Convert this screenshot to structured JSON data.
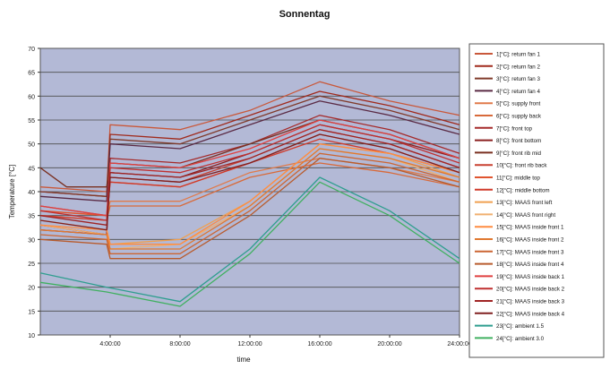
{
  "chart_data": {
    "type": "line",
    "title": "Sonnentag",
    "xlabel": "time",
    "ylabel": "Temperature [°C]",
    "ylim": [
      10,
      70
    ],
    "yticks": [
      10,
      15,
      20,
      25,
      30,
      35,
      40,
      45,
      50,
      55,
      60,
      65,
      70
    ],
    "xlim": [
      0,
      24
    ],
    "xticks": [
      4,
      8,
      12,
      16,
      20,
      24
    ],
    "xtick_labels": [
      "4:00:00",
      "8:00:00",
      "12:00:00",
      "16:00:00",
      "20:00:00",
      "24:00:00"
    ],
    "grid": true,
    "legend": "right",
    "colors": {
      "plot_background": "#b3b9d6",
      "gridline": "#4d4d4d"
    },
    "series": [
      {
        "name": "1[°C]: return fan 1",
        "color": "#c9583a",
        "points": [
          [
            0,
            41
          ],
          [
            3.8,
            40
          ],
          [
            4,
            54
          ],
          [
            8,
            53
          ],
          [
            12,
            57
          ],
          [
            16,
            63
          ],
          [
            20,
            59
          ],
          [
            24,
            56
          ]
        ]
      },
      {
        "name": "2[°C]: return fan 2",
        "color": "#a02a1c",
        "points": [
          [
            0,
            40
          ],
          [
            3.8,
            39
          ],
          [
            4,
            52
          ],
          [
            8,
            51
          ],
          [
            12,
            56
          ],
          [
            16,
            61
          ],
          [
            20,
            58
          ],
          [
            24,
            54
          ]
        ]
      },
      {
        "name": "3[°C]: return fan 3",
        "color": "#803a2a",
        "points": [
          [
            0,
            40
          ],
          [
            3.8,
            39
          ],
          [
            4,
            51
          ],
          [
            8,
            50
          ],
          [
            12,
            55
          ],
          [
            16,
            60
          ],
          [
            20,
            57
          ],
          [
            24,
            53
          ]
        ]
      },
      {
        "name": "4[°C]: return fan 4",
        "color": "#5a2a44",
        "points": [
          [
            0,
            39
          ],
          [
            3.8,
            38
          ],
          [
            4,
            50
          ],
          [
            8,
            49
          ],
          [
            12,
            54
          ],
          [
            16,
            59
          ],
          [
            20,
            56
          ],
          [
            24,
            52
          ]
        ]
      },
      {
        "name": "5[°C]: supply front",
        "color": "#e07a4a",
        "points": [
          [
            0,
            36
          ],
          [
            3.8,
            35
          ],
          [
            4,
            38
          ],
          [
            8,
            38
          ],
          [
            12,
            44
          ],
          [
            16,
            47
          ],
          [
            20,
            45
          ],
          [
            24,
            42
          ]
        ]
      },
      {
        "name": "6[°C]: supply back",
        "color": "#d86a3a",
        "points": [
          [
            0,
            35
          ],
          [
            3.8,
            34
          ],
          [
            4,
            37
          ],
          [
            8,
            37
          ],
          [
            12,
            43
          ],
          [
            16,
            46
          ],
          [
            20,
            44
          ],
          [
            24,
            41
          ]
        ]
      },
      {
        "name": "7[°C]: front top",
        "color": "#a52a2a",
        "points": [
          [
            0,
            33
          ],
          [
            3.8,
            31
          ],
          [
            4,
            47
          ],
          [
            8,
            46
          ],
          [
            12,
            50
          ],
          [
            16,
            56
          ],
          [
            20,
            53
          ],
          [
            24,
            48
          ]
        ]
      },
      {
        "name": "8[°C]: front bottom",
        "color": "#8b2020",
        "points": [
          [
            0,
            32
          ],
          [
            3.8,
            31
          ],
          [
            4,
            44
          ],
          [
            8,
            43
          ],
          [
            12,
            48
          ],
          [
            16,
            54
          ],
          [
            20,
            51
          ],
          [
            24,
            47
          ]
        ]
      },
      {
        "name": "9[°C]: front rib mid",
        "color": "#7a3020",
        "points": [
          [
            0,
            45
          ],
          [
            1.5,
            41
          ],
          [
            3.8,
            41
          ],
          [
            4,
            46
          ],
          [
            8,
            45
          ],
          [
            12,
            50
          ],
          [
            16,
            55
          ],
          [
            20,
            52
          ],
          [
            24,
            47
          ]
        ]
      },
      {
        "name": "10[°C]: front rib back",
        "color": "#c84030",
        "points": [
          [
            0,
            37
          ],
          [
            3.8,
            35
          ],
          [
            4,
            43
          ],
          [
            8,
            42
          ],
          [
            12,
            47
          ],
          [
            16,
            53
          ],
          [
            20,
            50
          ],
          [
            24,
            45
          ]
        ]
      },
      {
        "name": "11[°C]: middle top",
        "color": "#e05530",
        "points": [
          [
            0,
            36
          ],
          [
            3.8,
            35
          ],
          [
            4,
            42
          ],
          [
            8,
            41
          ],
          [
            12,
            46
          ],
          [
            16,
            52
          ],
          [
            20,
            49
          ],
          [
            24,
            44
          ]
        ]
      },
      {
        "name": "12[°C]: middle bottom",
        "color": "#d03a2a",
        "points": [
          [
            0,
            35
          ],
          [
            3.8,
            34
          ],
          [
            4,
            42
          ],
          [
            8,
            41
          ],
          [
            12,
            46
          ],
          [
            16,
            51
          ],
          [
            20,
            48
          ],
          [
            24,
            44
          ]
        ]
      },
      {
        "name": "13[°C]: MAAS front left",
        "color": "#f0a050",
        "points": [
          [
            0,
            34
          ],
          [
            3.8,
            32
          ],
          [
            4,
            29
          ],
          [
            8,
            30
          ],
          [
            12,
            38
          ],
          [
            16,
            50
          ],
          [
            20,
            48
          ],
          [
            24,
            43
          ]
        ]
      },
      {
        "name": "14[°C]: MAAS front right",
        "color": "#f0b070",
        "points": [
          [
            0,
            33
          ],
          [
            3.8,
            31
          ],
          [
            4,
            28
          ],
          [
            8,
            29
          ],
          [
            12,
            37
          ],
          [
            16,
            49
          ],
          [
            20,
            47
          ],
          [
            24,
            42
          ]
        ]
      },
      {
        "name": "15[°C]: MAAS inside front 1",
        "color": "#ff8c40",
        "points": [
          [
            0,
            33
          ],
          [
            3.8,
            32
          ],
          [
            4,
            29
          ],
          [
            8,
            29
          ],
          [
            12,
            38
          ],
          [
            16,
            50
          ],
          [
            20,
            48
          ],
          [
            24,
            44
          ]
        ]
      },
      {
        "name": "16[°C]: MAAS inside front 2",
        "color": "#e07830",
        "points": [
          [
            0,
            32
          ],
          [
            3.8,
            31
          ],
          [
            4,
            28
          ],
          [
            8,
            28
          ],
          [
            12,
            37
          ],
          [
            16,
            49
          ],
          [
            20,
            47
          ],
          [
            24,
            43
          ]
        ]
      },
      {
        "name": "17[°C]: MAAS inside front 3",
        "color": "#cc6633",
        "points": [
          [
            0,
            31
          ],
          [
            3.8,
            30
          ],
          [
            4,
            27
          ],
          [
            8,
            27
          ],
          [
            12,
            36
          ],
          [
            16,
            48
          ],
          [
            20,
            46
          ],
          [
            24,
            42
          ]
        ]
      },
      {
        "name": "18[°C]: MAAS inside front 4",
        "color": "#b85c2e",
        "points": [
          [
            0,
            30
          ],
          [
            3.8,
            29
          ],
          [
            4,
            26
          ],
          [
            8,
            26
          ],
          [
            12,
            35
          ],
          [
            16,
            47
          ],
          [
            20,
            45
          ],
          [
            24,
            41
          ]
        ]
      },
      {
        "name": "19[°C]: MAAS inside back 1",
        "color": "#e04040",
        "points": [
          [
            0,
            37
          ],
          [
            3.8,
            35
          ],
          [
            4,
            46
          ],
          [
            8,
            45
          ],
          [
            12,
            49
          ],
          [
            16,
            55
          ],
          [
            20,
            52
          ],
          [
            24,
            47
          ]
        ]
      },
      {
        "name": "20[°C]: MAAS inside back 2",
        "color": "#c03030",
        "points": [
          [
            0,
            36
          ],
          [
            3.8,
            34
          ],
          [
            4,
            45
          ],
          [
            8,
            44
          ],
          [
            12,
            48
          ],
          [
            16,
            54
          ],
          [
            20,
            51
          ],
          [
            24,
            46
          ]
        ]
      },
      {
        "name": "21[°C]: MAAS inside back 3",
        "color": "#a02424",
        "points": [
          [
            0,
            35
          ],
          [
            3.8,
            33
          ],
          [
            4,
            44
          ],
          [
            8,
            43
          ],
          [
            12,
            47
          ],
          [
            16,
            53
          ],
          [
            20,
            50
          ],
          [
            24,
            45
          ]
        ]
      },
      {
        "name": "22[°C]: MAAS inside back 4",
        "color": "#802020",
        "points": [
          [
            0,
            34
          ],
          [
            3.8,
            32
          ],
          [
            4,
            43
          ],
          [
            8,
            42
          ],
          [
            12,
            46
          ],
          [
            16,
            52
          ],
          [
            20,
            49
          ],
          [
            24,
            44
          ]
        ]
      },
      {
        "name": "23[°C]: ambient 1.5",
        "color": "#2f9e8f",
        "points": [
          [
            0,
            23
          ],
          [
            3.8,
            20
          ],
          [
            8,
            17
          ],
          [
            12,
            28
          ],
          [
            16,
            43
          ],
          [
            20,
            36
          ],
          [
            24,
            26
          ]
        ]
      },
      {
        "name": "24[°C]: ambient 3.0",
        "color": "#40b060",
        "points": [
          [
            0,
            21
          ],
          [
            3.8,
            19
          ],
          [
            8,
            16
          ],
          [
            12,
            27
          ],
          [
            16,
            42
          ],
          [
            20,
            35
          ],
          [
            24,
            25
          ]
        ]
      }
    ]
  }
}
